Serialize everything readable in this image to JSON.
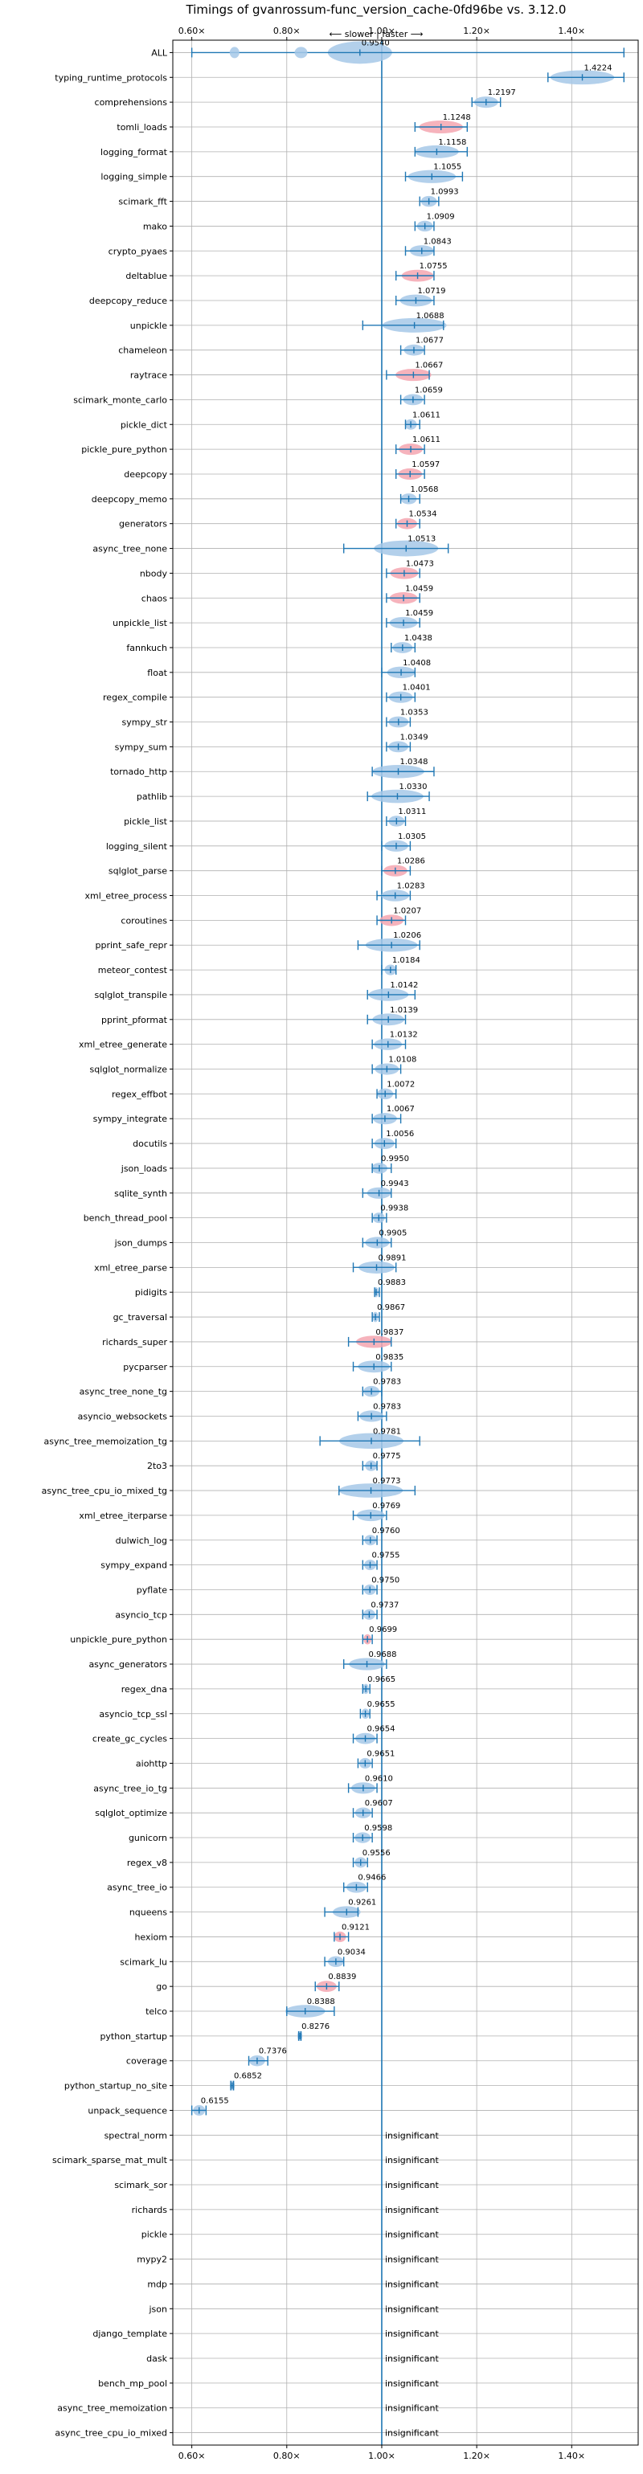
{
  "chart_data": {
    "type": "violin",
    "title": "Timings of gvanrossum-func_version_cache-0fd96be vs. 3.12.0",
    "subtitle": "⟵ slower | faster ⟶",
    "xlim": [
      0.56,
      1.54
    ],
    "xticks": [
      0.6,
      0.8,
      1.0,
      1.2,
      1.4
    ],
    "xtick_labels": [
      "0.60×",
      "0.80×",
      "1.00×",
      "1.20×",
      "1.40×"
    ],
    "reference_line": 1.0,
    "grid": true,
    "insignificant_label": "insignificant",
    "colors": {
      "faster": "#a6c8e8",
      "slower": "#f4a6b0",
      "line": "#1f77b4"
    },
    "benchmarks": [
      {
        "name": "ALL",
        "value": 0.954,
        "label": "0.9540",
        "min": 0.6,
        "max": 1.51,
        "slower": false
      },
      {
        "name": "typing_runtime_protocols",
        "value": 1.4224,
        "label": "1.4224",
        "min": 1.35,
        "max": 1.51,
        "slower": false
      },
      {
        "name": "comprehensions",
        "value": 1.2197,
        "label": "1.2197",
        "min": 1.19,
        "max": 1.25,
        "slower": false
      },
      {
        "name": "tomli_loads",
        "value": 1.1248,
        "label": "1.1248",
        "min": 1.07,
        "max": 1.18,
        "slower": true
      },
      {
        "name": "logging_format",
        "value": 1.1158,
        "label": "1.1158",
        "min": 1.07,
        "max": 1.18,
        "slower": false
      },
      {
        "name": "logging_simple",
        "value": 1.1055,
        "label": "1.1055",
        "min": 1.05,
        "max": 1.17,
        "slower": false
      },
      {
        "name": "scimark_fft",
        "value": 1.0993,
        "label": "1.0993",
        "min": 1.08,
        "max": 1.12,
        "slower": false
      },
      {
        "name": "mako",
        "value": 1.0909,
        "label": "1.0909",
        "min": 1.07,
        "max": 1.11,
        "slower": false
      },
      {
        "name": "crypto_pyaes",
        "value": 1.0843,
        "label": "1.0843",
        "min": 1.05,
        "max": 1.11,
        "slower": false
      },
      {
        "name": "deltablue",
        "value": 1.0755,
        "label": "1.0755",
        "min": 1.03,
        "max": 1.11,
        "slower": true
      },
      {
        "name": "deepcopy_reduce",
        "value": 1.0719,
        "label": "1.0719",
        "min": 1.03,
        "max": 1.11,
        "slower": false
      },
      {
        "name": "unpickle",
        "value": 1.0688,
        "label": "1.0688",
        "min": 0.96,
        "max": 1.13,
        "slower": false
      },
      {
        "name": "chameleon",
        "value": 1.0677,
        "label": "1.0677",
        "min": 1.04,
        "max": 1.09,
        "slower": false
      },
      {
        "name": "raytrace",
        "value": 1.0667,
        "label": "1.0667",
        "min": 1.01,
        "max": 1.1,
        "slower": true
      },
      {
        "name": "scimark_monte_carlo",
        "value": 1.0659,
        "label": "1.0659",
        "min": 1.04,
        "max": 1.09,
        "slower": false
      },
      {
        "name": "pickle_dict",
        "value": 1.0611,
        "label": "1.0611",
        "min": 1.05,
        "max": 1.08,
        "slower": false
      },
      {
        "name": "pickle_pure_python",
        "value": 1.0611,
        "label": "1.0611",
        "min": 1.03,
        "max": 1.09,
        "slower": true
      },
      {
        "name": "deepcopy",
        "value": 1.0597,
        "label": "1.0597",
        "min": 1.03,
        "max": 1.09,
        "slower": true
      },
      {
        "name": "deepcopy_memo",
        "value": 1.0568,
        "label": "1.0568",
        "min": 1.04,
        "max": 1.08,
        "slower": false
      },
      {
        "name": "generators",
        "value": 1.0534,
        "label": "1.0534",
        "min": 1.03,
        "max": 1.08,
        "slower": true
      },
      {
        "name": "async_tree_none",
        "value": 1.0513,
        "label": "1.0513",
        "min": 0.92,
        "max": 1.14,
        "slower": false
      },
      {
        "name": "nbody",
        "value": 1.0473,
        "label": "1.0473",
        "min": 1.01,
        "max": 1.08,
        "slower": true
      },
      {
        "name": "chaos",
        "value": 1.0459,
        "label": "1.0459",
        "min": 1.01,
        "max": 1.08,
        "slower": true
      },
      {
        "name": "unpickle_list",
        "value": 1.0459,
        "label": "1.0459",
        "min": 1.01,
        "max": 1.08,
        "slower": false
      },
      {
        "name": "fannkuch",
        "value": 1.0438,
        "label": "1.0438",
        "min": 1.02,
        "max": 1.07,
        "slower": false
      },
      {
        "name": "float",
        "value": 1.0408,
        "label": "1.0408",
        "min": 1.0,
        "max": 1.07,
        "slower": false
      },
      {
        "name": "regex_compile",
        "value": 1.0401,
        "label": "1.0401",
        "min": 1.01,
        "max": 1.07,
        "slower": false
      },
      {
        "name": "sympy_str",
        "value": 1.0353,
        "label": "1.0353",
        "min": 1.01,
        "max": 1.06,
        "slower": false
      },
      {
        "name": "sympy_sum",
        "value": 1.0349,
        "label": "1.0349",
        "min": 1.01,
        "max": 1.06,
        "slower": false
      },
      {
        "name": "tornado_http",
        "value": 1.0348,
        "label": "1.0348",
        "min": 0.98,
        "max": 1.11,
        "slower": false
      },
      {
        "name": "pathlib",
        "value": 1.033,
        "label": "1.0330",
        "min": 0.97,
        "max": 1.1,
        "slower": false
      },
      {
        "name": "pickle_list",
        "value": 1.0311,
        "label": "1.0311",
        "min": 1.01,
        "max": 1.05,
        "slower": false
      },
      {
        "name": "logging_silent",
        "value": 1.0305,
        "label": "1.0305",
        "min": 1.0,
        "max": 1.06,
        "slower": false
      },
      {
        "name": "sqlglot_parse",
        "value": 1.0286,
        "label": "1.0286",
        "min": 1.0,
        "max": 1.06,
        "slower": true
      },
      {
        "name": "xml_etree_process",
        "value": 1.0283,
        "label": "1.0283",
        "min": 0.99,
        "max": 1.06,
        "slower": false
      },
      {
        "name": "coroutines",
        "value": 1.0207,
        "label": "1.0207",
        "min": 0.99,
        "max": 1.05,
        "slower": true
      },
      {
        "name": "pprint_safe_repr",
        "value": 1.0206,
        "label": "1.0206",
        "min": 0.95,
        "max": 1.08,
        "slower": false
      },
      {
        "name": "meteor_contest",
        "value": 1.0184,
        "label": "1.0184",
        "min": 1.0,
        "max": 1.03,
        "slower": false
      },
      {
        "name": "sqlglot_transpile",
        "value": 1.0142,
        "label": "1.0142",
        "min": 0.97,
        "max": 1.07,
        "slower": false
      },
      {
        "name": "pprint_pformat",
        "value": 1.0139,
        "label": "1.0139",
        "min": 0.97,
        "max": 1.05,
        "slower": false
      },
      {
        "name": "xml_etree_generate",
        "value": 1.0132,
        "label": "1.0132",
        "min": 0.98,
        "max": 1.05,
        "slower": false
      },
      {
        "name": "sqlglot_normalize",
        "value": 1.0108,
        "label": "1.0108",
        "min": 0.98,
        "max": 1.04,
        "slower": false
      },
      {
        "name": "regex_effbot",
        "value": 1.0072,
        "label": "1.0072",
        "min": 0.99,
        "max": 1.03,
        "slower": false
      },
      {
        "name": "sympy_integrate",
        "value": 1.0067,
        "label": "1.0067",
        "min": 0.98,
        "max": 1.04,
        "slower": false
      },
      {
        "name": "docutils",
        "value": 1.0056,
        "label": "1.0056",
        "min": 0.98,
        "max": 1.03,
        "slower": false
      },
      {
        "name": "json_loads",
        "value": 0.995,
        "label": "0.9950",
        "min": 0.98,
        "max": 1.02,
        "slower": false
      },
      {
        "name": "sqlite_synth",
        "value": 0.9943,
        "label": "0.9943",
        "min": 0.96,
        "max": 1.02,
        "slower": false
      },
      {
        "name": "bench_thread_pool",
        "value": 0.9938,
        "label": "0.9938",
        "min": 0.98,
        "max": 1.01,
        "slower": false
      },
      {
        "name": "json_dumps",
        "value": 0.9905,
        "label": "0.9905",
        "min": 0.96,
        "max": 1.02,
        "slower": false
      },
      {
        "name": "xml_etree_parse",
        "value": 0.9891,
        "label": "0.9891",
        "min": 0.94,
        "max": 1.03,
        "slower": false
      },
      {
        "name": "pidigits",
        "value": 0.9883,
        "label": "0.9883",
        "min": 0.985,
        "max": 0.995,
        "slower": false
      },
      {
        "name": "gc_traversal",
        "value": 0.9867,
        "label": "0.9867",
        "min": 0.98,
        "max": 0.995,
        "slower": false
      },
      {
        "name": "richards_super",
        "value": 0.9837,
        "label": "0.9837",
        "min": 0.93,
        "max": 1.02,
        "slower": true
      },
      {
        "name": "pycparser",
        "value": 0.9835,
        "label": "0.9835",
        "min": 0.94,
        "max": 1.02,
        "slower": false
      },
      {
        "name": "async_tree_none_tg",
        "value": 0.9783,
        "label": "0.9783",
        "min": 0.96,
        "max": 1.0,
        "slower": false
      },
      {
        "name": "asyncio_websockets",
        "value": 0.9783,
        "label": "0.9783",
        "min": 0.95,
        "max": 1.01,
        "slower": false
      },
      {
        "name": "async_tree_memoization_tg",
        "value": 0.9781,
        "label": "0.9781",
        "min": 0.87,
        "max": 1.08,
        "slower": false
      },
      {
        "name": "2to3",
        "value": 0.9775,
        "label": "0.9775",
        "min": 0.96,
        "max": 0.99,
        "slower": false
      },
      {
        "name": "async_tree_cpu_io_mixed_tg",
        "value": 0.9773,
        "label": "0.9773",
        "min": 0.91,
        "max": 1.07,
        "slower": false
      },
      {
        "name": "xml_etree_iterparse",
        "value": 0.9769,
        "label": "0.9769",
        "min": 0.94,
        "max": 1.01,
        "slower": false
      },
      {
        "name": "dulwich_log",
        "value": 0.976,
        "label": "0.9760",
        "min": 0.96,
        "max": 0.99,
        "slower": false
      },
      {
        "name": "sympy_expand",
        "value": 0.9755,
        "label": "0.9755",
        "min": 0.96,
        "max": 0.99,
        "slower": false
      },
      {
        "name": "pyflate",
        "value": 0.975,
        "label": "0.9750",
        "min": 0.96,
        "max": 0.99,
        "slower": false
      },
      {
        "name": "asyncio_tcp",
        "value": 0.9737,
        "label": "0.9737",
        "min": 0.96,
        "max": 0.99,
        "slower": false
      },
      {
        "name": "unpickle_pure_python",
        "value": 0.9699,
        "label": "0.9699",
        "min": 0.96,
        "max": 0.98,
        "slower": true
      },
      {
        "name": "async_generators",
        "value": 0.9688,
        "label": "0.9688",
        "min": 0.92,
        "max": 1.01,
        "slower": false
      },
      {
        "name": "regex_dna",
        "value": 0.9665,
        "label": "0.9665",
        "min": 0.96,
        "max": 0.975,
        "slower": false
      },
      {
        "name": "asyncio_tcp_ssl",
        "value": 0.9655,
        "label": "0.9655",
        "min": 0.955,
        "max": 0.975,
        "slower": false
      },
      {
        "name": "create_gc_cycles",
        "value": 0.9654,
        "label": "0.9654",
        "min": 0.94,
        "max": 0.99,
        "slower": false
      },
      {
        "name": "aiohttp",
        "value": 0.9651,
        "label": "0.9651",
        "min": 0.95,
        "max": 0.98,
        "slower": false
      },
      {
        "name": "async_tree_io_tg",
        "value": 0.961,
        "label": "0.9610",
        "min": 0.93,
        "max": 0.99,
        "slower": false
      },
      {
        "name": "sqlglot_optimize",
        "value": 0.9607,
        "label": "0.9607",
        "min": 0.94,
        "max": 0.98,
        "slower": false
      },
      {
        "name": "gunicorn",
        "value": 0.9598,
        "label": "0.9598",
        "min": 0.94,
        "max": 0.98,
        "slower": false
      },
      {
        "name": "regex_v8",
        "value": 0.9556,
        "label": "0.9556",
        "min": 0.94,
        "max": 0.97,
        "slower": false
      },
      {
        "name": "async_tree_io",
        "value": 0.9466,
        "label": "0.9466",
        "min": 0.92,
        "max": 0.97,
        "slower": false
      },
      {
        "name": "nqueens",
        "value": 0.9261,
        "label": "0.9261",
        "min": 0.88,
        "max": 0.95,
        "slower": false
      },
      {
        "name": "hexiom",
        "value": 0.9121,
        "label": "0.9121",
        "min": 0.9,
        "max": 0.93,
        "slower": true
      },
      {
        "name": "scimark_lu",
        "value": 0.9034,
        "label": "0.9034",
        "min": 0.88,
        "max": 0.92,
        "slower": false
      },
      {
        "name": "go",
        "value": 0.8839,
        "label": "0.8839",
        "min": 0.86,
        "max": 0.91,
        "slower": true
      },
      {
        "name": "telco",
        "value": 0.8388,
        "label": "0.8388",
        "min": 0.8,
        "max": 0.9,
        "slower": false
      },
      {
        "name": "python_startup",
        "value": 0.8276,
        "label": "0.8276",
        "min": 0.825,
        "max": 0.83,
        "slower": false
      },
      {
        "name": "coverage",
        "value": 0.7376,
        "label": "0.7376",
        "min": 0.72,
        "max": 0.76,
        "slower": false
      },
      {
        "name": "python_startup_no_site",
        "value": 0.6852,
        "label": "0.6852",
        "min": 0.682,
        "max": 0.688,
        "slower": false
      },
      {
        "name": "unpack_sequence",
        "value": 0.6155,
        "label": "0.6155",
        "min": 0.6,
        "max": 0.63,
        "slower": false
      },
      {
        "name": "spectral_norm",
        "insignificant": true
      },
      {
        "name": "scimark_sparse_mat_mult",
        "insignificant": true
      },
      {
        "name": "scimark_sor",
        "insignificant": true
      },
      {
        "name": "richards",
        "insignificant": true
      },
      {
        "name": "pickle",
        "insignificant": true
      },
      {
        "name": "mypy2",
        "insignificant": true
      },
      {
        "name": "mdp",
        "insignificant": true
      },
      {
        "name": "json",
        "insignificant": true
      },
      {
        "name": "django_template",
        "insignificant": true
      },
      {
        "name": "dask",
        "insignificant": true
      },
      {
        "name": "bench_mp_pool",
        "insignificant": true
      },
      {
        "name": "async_tree_memoization",
        "insignificant": true
      },
      {
        "name": "async_tree_cpu_io_mixed",
        "insignificant": true
      }
    ]
  }
}
